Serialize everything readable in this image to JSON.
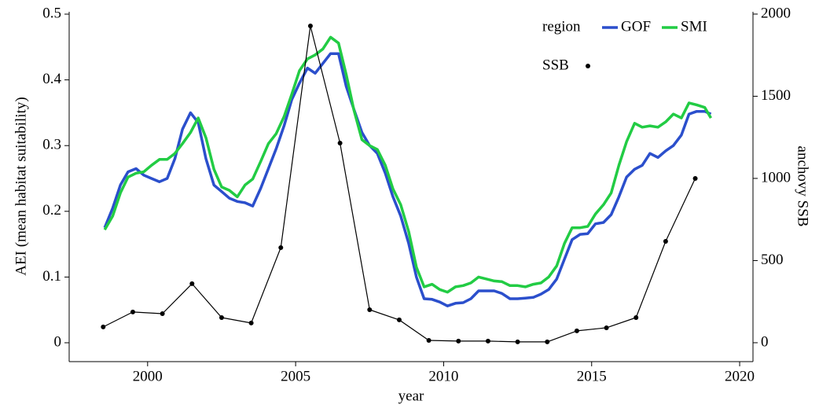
{
  "chart_data": {
    "type": "line",
    "x_label": "year",
    "y_label": "AEI (mean habitat suitability)",
    "y2_label": "anchovy SSB",
    "legend_title": "region",
    "xlim": [
      1997.35,
      2020.45
    ],
    "xticks": [
      2000,
      2005,
      2010,
      2015,
      2020
    ],
    "ylim": [
      -0.0287,
      0.5036
    ],
    "yticks": [
      0,
      0.1,
      0.2,
      0.3,
      0.4,
      0.5
    ],
    "y2lim": [
      -115,
      2014
    ],
    "y2ticks": [
      0,
      500,
      1000,
      1500,
      2000
    ],
    "series": [
      {
        "name": "GOF",
        "color": "#2b4fcc",
        "x": [
          1998.55,
          1998.82,
          1999.08,
          1999.34,
          1999.61,
          1999.87,
          2000.13,
          2000.4,
          2000.66,
          2000.92,
          2001.18,
          2001.45,
          2001.71,
          2001.97,
          2002.24,
          2002.5,
          2002.76,
          2003.03,
          2003.29,
          2003.55,
          2003.82,
          2004.08,
          2004.34,
          2004.61,
          2004.87,
          2005.13,
          2005.4,
          2005.66,
          2005.92,
          2006.18,
          2006.45,
          2006.71,
          2006.97,
          2007.24,
          2007.5,
          2007.76,
          2008.03,
          2008.29,
          2008.55,
          2008.82,
          2009.08,
          2009.34,
          2009.61,
          2009.87,
          2010.13,
          2010.4,
          2010.66,
          2010.92,
          2011.18,
          2011.45,
          2011.71,
          2011.97,
          2012.24,
          2012.5,
          2012.76,
          2013.03,
          2013.29,
          2013.55,
          2013.82,
          2014.08,
          2014.34,
          2014.61,
          2014.87,
          2015.13,
          2015.4,
          2015.66,
          2015.92,
          2016.18,
          2016.45,
          2016.71,
          2016.97,
          2017.24,
          2017.5,
          2017.76,
          2018.03,
          2018.29,
          2018.55,
          2018.82,
          2019.03
        ],
        "values": [
          0.175,
          0.205,
          0.24,
          0.26,
          0.265,
          0.255,
          0.25,
          0.245,
          0.25,
          0.28,
          0.325,
          0.35,
          0.335,
          0.28,
          0.24,
          0.23,
          0.22,
          0.215,
          0.213,
          0.208,
          0.235,
          0.265,
          0.295,
          0.33,
          0.37,
          0.395,
          0.418,
          0.41,
          0.425,
          0.44,
          0.44,
          0.39,
          0.355,
          0.32,
          0.3,
          0.288,
          0.258,
          0.222,
          0.193,
          0.151,
          0.1,
          0.067,
          0.066,
          0.062,
          0.056,
          0.06,
          0.061,
          0.067,
          0.079,
          0.079,
          0.079,
          0.075,
          0.067,
          0.067,
          0.068,
          0.069,
          0.074,
          0.081,
          0.097,
          0.127,
          0.157,
          0.165,
          0.166,
          0.181,
          0.183,
          0.195,
          0.222,
          0.252,
          0.264,
          0.27,
          0.288,
          0.282,
          0.292,
          0.3,
          0.316,
          0.348,
          0.352,
          0.352,
          0.348
        ]
      },
      {
        "name": "SMI",
        "color": "#22cc44",
        "x": [
          1998.55,
          1998.82,
          1999.08,
          1999.34,
          1999.61,
          1999.87,
          2000.13,
          2000.4,
          2000.66,
          2000.92,
          2001.18,
          2001.45,
          2001.71,
          2001.97,
          2002.24,
          2002.5,
          2002.76,
          2003.03,
          2003.29,
          2003.55,
          2003.82,
          2004.08,
          2004.34,
          2004.61,
          2004.87,
          2005.13,
          2005.4,
          2005.66,
          2005.92,
          2006.18,
          2006.45,
          2006.71,
          2006.97,
          2007.24,
          2007.5,
          2007.76,
          2008.03,
          2008.29,
          2008.55,
          2008.82,
          2009.08,
          2009.34,
          2009.61,
          2009.87,
          2010.13,
          2010.4,
          2010.66,
          2010.92,
          2011.18,
          2011.45,
          2011.71,
          2011.97,
          2012.24,
          2012.5,
          2012.76,
          2013.03,
          2013.29,
          2013.55,
          2013.82,
          2014.08,
          2014.34,
          2014.61,
          2014.87,
          2015.13,
          2015.4,
          2015.66,
          2015.92,
          2016.18,
          2016.45,
          2016.71,
          2016.97,
          2017.24,
          2017.5,
          2017.76,
          2018.03,
          2018.29,
          2018.55,
          2018.82,
          2019.03
        ],
        "values": [
          0.172,
          0.193,
          0.228,
          0.252,
          0.258,
          0.26,
          0.27,
          0.279,
          0.279,
          0.288,
          0.303,
          0.32,
          0.342,
          0.312,
          0.264,
          0.237,
          0.232,
          0.222,
          0.24,
          0.249,
          0.276,
          0.303,
          0.318,
          0.344,
          0.378,
          0.414,
          0.432,
          0.438,
          0.447,
          0.465,
          0.456,
          0.408,
          0.354,
          0.309,
          0.3,
          0.294,
          0.27,
          0.234,
          0.21,
          0.169,
          0.115,
          0.085,
          0.089,
          0.081,
          0.077,
          0.085,
          0.087,
          0.091,
          0.1,
          0.097,
          0.094,
          0.093,
          0.087,
          0.087,
          0.085,
          0.089,
          0.091,
          0.1,
          0.117,
          0.151,
          0.175,
          0.175,
          0.177,
          0.196,
          0.21,
          0.228,
          0.27,
          0.306,
          0.334,
          0.328,
          0.33,
          0.328,
          0.336,
          0.348,
          0.342,
          0.365,
          0.362,
          0.358,
          0.342
        ]
      },
      {
        "name": "SSB",
        "color": "#000000",
        "axis": "y2",
        "x": [
          1998.5,
          1999.5,
          2000.5,
          2001.5,
          2002.5,
          2003.5,
          2004.5,
          2005.5,
          2006.5,
          2007.5,
          2008.5,
          2009.5,
          2010.5,
          2011.5,
          2012.5,
          2013.5,
          2014.5,
          2015.5,
          2016.5,
          2017.5,
          2018.5
        ],
        "values": [
          96,
          187,
          177,
          359,
          153,
          120,
          579,
          1928,
          1215,
          201,
          139,
          14,
          10,
          10,
          5,
          5,
          72,
          91,
          153,
          617,
          1000
        ]
      }
    ]
  }
}
